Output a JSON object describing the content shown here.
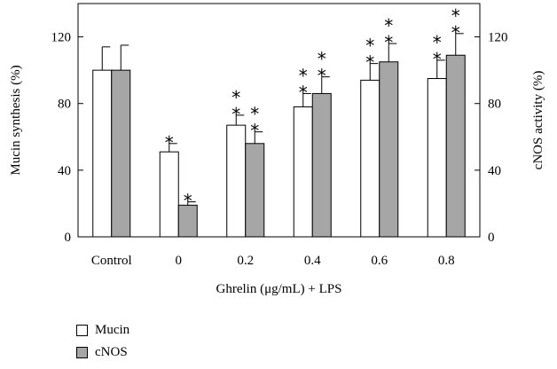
{
  "chart_data": {
    "type": "bar",
    "categories": [
      "Control",
      "0",
      "0.2",
      "0.4",
      "0.6",
      "0.8"
    ],
    "series": [
      {
        "name": "Mucin",
        "axis": "left",
        "color": "#ffffff",
        "values": [
          100,
          51,
          67,
          78,
          94,
          95
        ],
        "errors": [
          14,
          5,
          6,
          8,
          10,
          11
        ],
        "significance": [
          "",
          "*",
          "**",
          "**",
          "**",
          "**"
        ]
      },
      {
        "name": "cNOS",
        "axis": "right",
        "color": "#a6a6a6",
        "values": [
          100,
          19,
          56,
          86,
          105,
          109
        ],
        "errors": [
          15,
          2,
          7,
          10,
          11,
          13
        ],
        "significance": [
          "",
          "*",
          "**",
          "**",
          "**",
          "**"
        ]
      }
    ],
    "xlabel": "Ghrelin (μg/mL) + LPS",
    "ylabel_left": "Mucin synthesis (%)",
    "ylabel_right": "cNOS activity (%)",
    "ylim": [
      0,
      140
    ],
    "yticks": [
      0,
      40,
      80,
      120
    ],
    "legend_placement": "bottom-left"
  }
}
